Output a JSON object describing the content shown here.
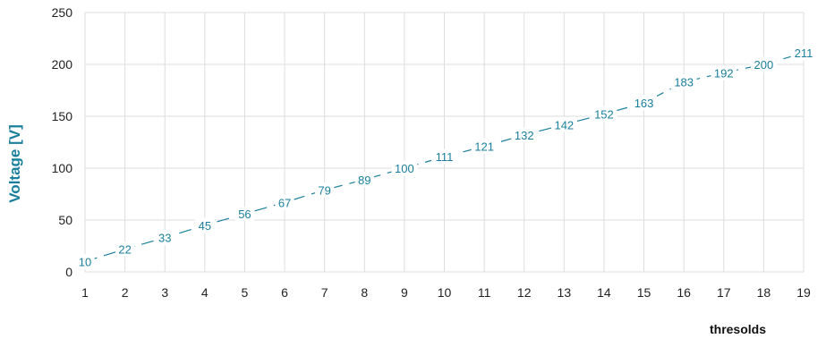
{
  "chart_data": {
    "type": "line",
    "x": [
      1,
      2,
      3,
      4,
      5,
      6,
      7,
      8,
      9,
      10,
      11,
      12,
      13,
      14,
      15,
      16,
      17,
      18,
      19
    ],
    "series": [
      {
        "values": [
          10,
          22,
          33,
          45,
          56,
          67,
          79,
          89,
          100,
          111,
          121,
          132,
          142,
          152,
          163,
          183,
          192,
          200,
          211
        ]
      }
    ],
    "xlabel": "thresolds",
    "ylabel": "Voltage [V]",
    "ylim": [
      0,
      250
    ],
    "yticks": [
      0,
      50,
      100,
      150,
      200,
      250
    ],
    "grid": true,
    "line_style": "dashed",
    "data_labels": true,
    "colors": {
      "line": "#1a7f9c",
      "ylabel": "#1a7f9c",
      "grid": "#dddddd",
      "tick_text": "#222222"
    }
  }
}
